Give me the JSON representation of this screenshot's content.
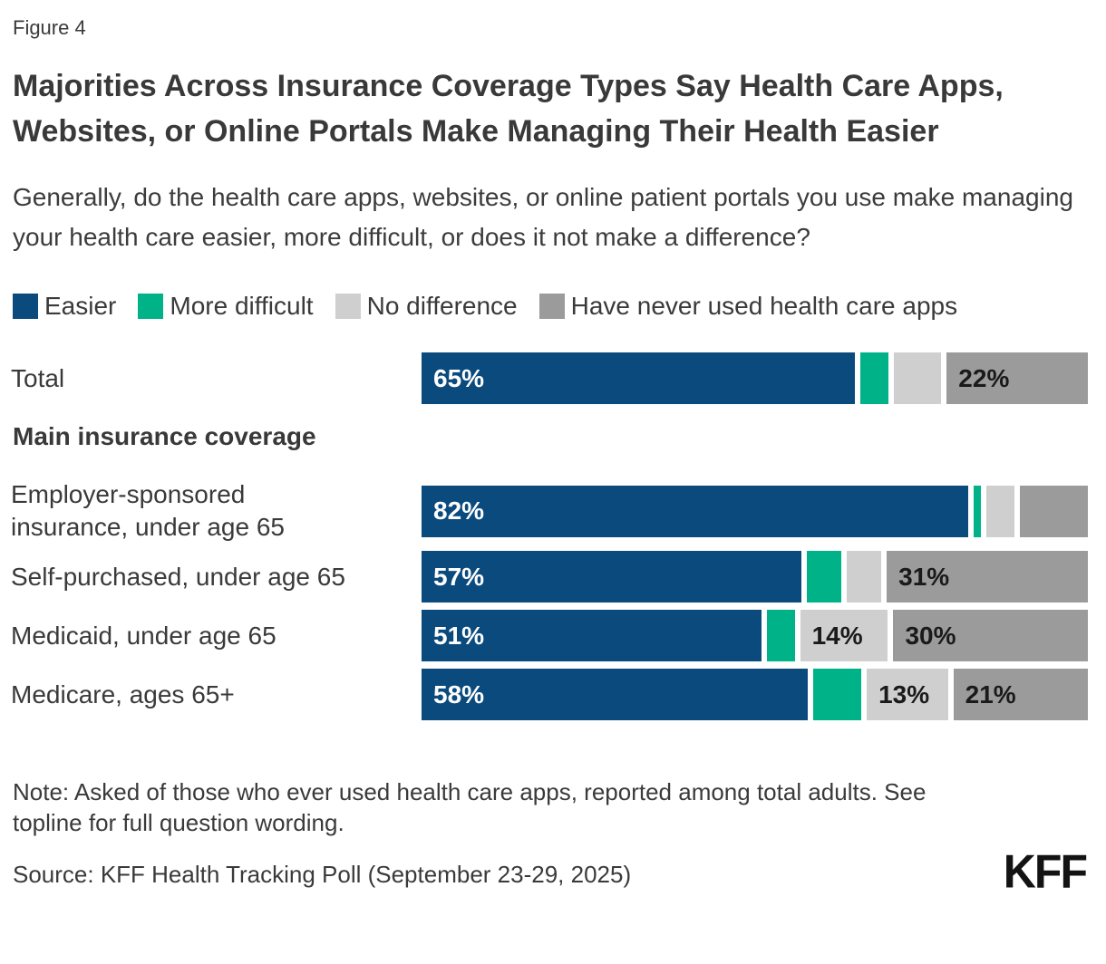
{
  "figure_label": "Figure 4",
  "title": "Majorities Across Insurance Coverage Types Say Health Care Apps, Websites, or Online Portals Make Managing Their Health Easier",
  "subtitle": "Generally, do the health care apps, websites, or online patient portals you use make managing your health care easier, more difficult, or does it not make a difference?",
  "section_header": "Main insurance coverage",
  "note": "Note: Asked of those who ever used health care apps, reported among total adults. See topline for full question wording.",
  "source": "Source: KFF Health Tracking Poll (September 23-29, 2025)",
  "logo_text": "KFF",
  "colors": {
    "easier": "#0B4A7D",
    "more_difficult": "#00B287",
    "no_difference": "#CFCFCF",
    "never_used": "#9B9B9B",
    "label_on_dark": "#FFFFFF",
    "label_on_light": "#1A1A1A"
  },
  "legend": [
    {
      "key": "easier",
      "label": "Easier",
      "color": "#0B4A7D"
    },
    {
      "key": "more-difficult",
      "label": "More difficult",
      "color": "#00B287"
    },
    {
      "key": "no-difference",
      "label": "No difference",
      "color": "#CFCFCF"
    },
    {
      "key": "never-used",
      "label": "Have never used health care apps",
      "color": "#9B9B9B"
    }
  ],
  "chart_data": {
    "type": "bar",
    "orientation": "horizontal",
    "stacked": true,
    "xlim": [
      0,
      100
    ],
    "grid": false,
    "legend_position": "top",
    "series_names": [
      "Easier",
      "More difficult",
      "No difference",
      "Have never used health care apps"
    ],
    "series_keys": [
      "easier",
      "more-difficult",
      "no-difference",
      "never-used"
    ],
    "series_colors": [
      "#0B4A7D",
      "#00B287",
      "#CFCFCF",
      "#9B9B9B"
    ],
    "rows": [
      {
        "category": "Total",
        "values": [
          65,
          5,
          8,
          22
        ],
        "labels": [
          "65%",
          "",
          "",
          "22%"
        ]
      },
      {
        "category": "Employer-sponsored\ninsurance, under age 65",
        "values": [
          82,
          2,
          5,
          11
        ],
        "labels": [
          "82%",
          "",
          "",
          ""
        ]
      },
      {
        "category": "Self-purchased, under age 65",
        "values": [
          57,
          6,
          6,
          31
        ],
        "labels": [
          "57%",
          "",
          "",
          "31%"
        ]
      },
      {
        "category": "Medicaid, under age 65",
        "values": [
          51,
          5,
          14,
          30
        ],
        "labels": [
          "51%",
          "",
          "14%",
          "30%"
        ]
      },
      {
        "category": "Medicare, ages 65+",
        "values": [
          58,
          8,
          13,
          21
        ],
        "labels": [
          "58%",
          "",
          "13%",
          "21%"
        ]
      }
    ]
  }
}
